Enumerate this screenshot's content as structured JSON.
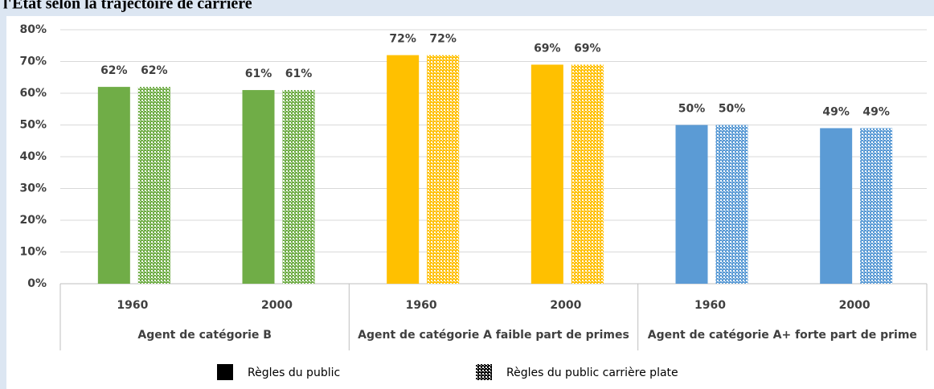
{
  "chart_data": {
    "type": "bar",
    "title": "l'Etat selon la trajectoire de carrière",
    "categories": [
      "1960",
      "2000",
      "1960",
      "2000",
      "1960",
      "2000"
    ],
    "groups": [
      "Agent de catégorie B",
      "Agent de catégorie A faible part de primes",
      "Agent de catégorie A+ forte part de prime"
    ],
    "point_colors": [
      "#70ad47",
      "#70ad47",
      "#ffc000",
      "#ffc000",
      "#5b9bd5",
      "#5b9bd5"
    ],
    "series": [
      {
        "name": "Règles du public",
        "color": "#000000",
        "pattern": "solid",
        "values": [
          62,
          61,
          72,
          69,
          50,
          49
        ],
        "value_labels": [
          "62%",
          "61%",
          "72%",
          "69%",
          "50%",
          "49%"
        ]
      },
      {
        "name": "Règles du public carrière plate",
        "color": "#000000",
        "pattern": "checker",
        "values": [
          62,
          61,
          72,
          69,
          50,
          49
        ],
        "value_labels": [
          "62%",
          "61%",
          "72%",
          "69%",
          "50%",
          "49%"
        ]
      }
    ],
    "ylim": [
      0,
      80
    ],
    "yticks": [
      {
        "value": 0,
        "label": "0%"
      },
      {
        "value": 10,
        "label": "10%"
      },
      {
        "value": 20,
        "label": "20%"
      },
      {
        "value": 30,
        "label": "30%"
      },
      {
        "value": 40,
        "label": "40%"
      },
      {
        "value": 50,
        "label": "50%"
      },
      {
        "value": 60,
        "label": "60%"
      },
      {
        "value": 70,
        "label": "70%"
      },
      {
        "value": 80,
        "label": "80%"
      }
    ],
    "grid": true
  }
}
